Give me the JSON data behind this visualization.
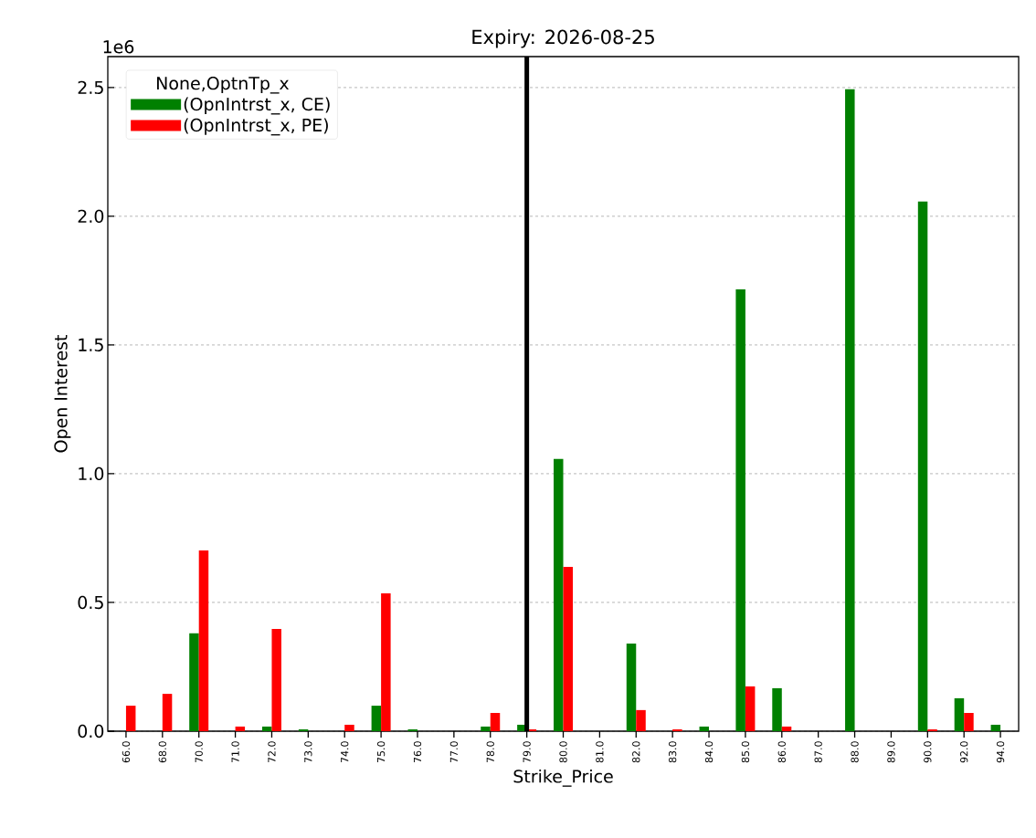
{
  "chart_data": {
    "type": "bar",
    "title": "Expiry: 2026-08-25",
    "xlabel": "Strike_Price",
    "ylabel": "Open Interest",
    "legend_title": "None,OptnTp_x",
    "categories": [
      "66.0",
      "68.0",
      "70.0",
      "71.0",
      "72.0",
      "73.0",
      "74.0",
      "75.0",
      "76.0",
      "77.0",
      "78.0",
      "79.0",
      "80.0",
      "81.0",
      "82.0",
      "83.0",
      "84.0",
      "85.0",
      "86.0",
      "87.0",
      "88.0",
      "89.0",
      "90.0",
      "92.0",
      "94.0"
    ],
    "series": [
      {
        "name": "(OpnIntrst_x, CE)",
        "color": "#008000",
        "values": [
          0,
          0,
          0.38,
          0,
          0.018,
          0.007,
          0,
          0.099,
          0.007,
          0,
          0.018,
          0.025,
          1.057,
          0,
          0.34,
          0,
          0.018,
          1.716,
          0.167,
          0,
          2.493,
          0,
          2.057,
          0.128,
          0.025
        ]
      },
      {
        "name": "(OpnIntrst_x, PE)",
        "color": "#ff0000",
        "values": [
          0.099,
          0.145,
          0.702,
          0.018,
          0.397,
          0,
          0.025,
          0.535,
          0,
          0,
          0.071,
          0.007,
          0.638,
          0,
          0.082,
          0.007,
          0,
          0.174,
          0.018,
          0,
          0,
          0,
          0.007,
          0.071,
          0
        ]
      }
    ],
    "ylim": [
      0,
      2.62
    ],
    "yticks": [
      {
        "value": 0,
        "label": "0.0"
      },
      {
        "value": 0.5,
        "label": "0.5"
      },
      {
        "value": 1.0,
        "label": "1.0"
      },
      {
        "value": 1.5,
        "label": "1.5"
      },
      {
        "value": 2.0,
        "label": "2.0"
      },
      {
        "value": 2.5,
        "label": "2.5"
      }
    ],
    "annotations": [
      "1e6"
    ],
    "ref_lines": [
      {
        "axis": "x",
        "value": "79.0",
        "color": "#000000"
      }
    ],
    "grid": "y",
    "legend": "top left"
  }
}
